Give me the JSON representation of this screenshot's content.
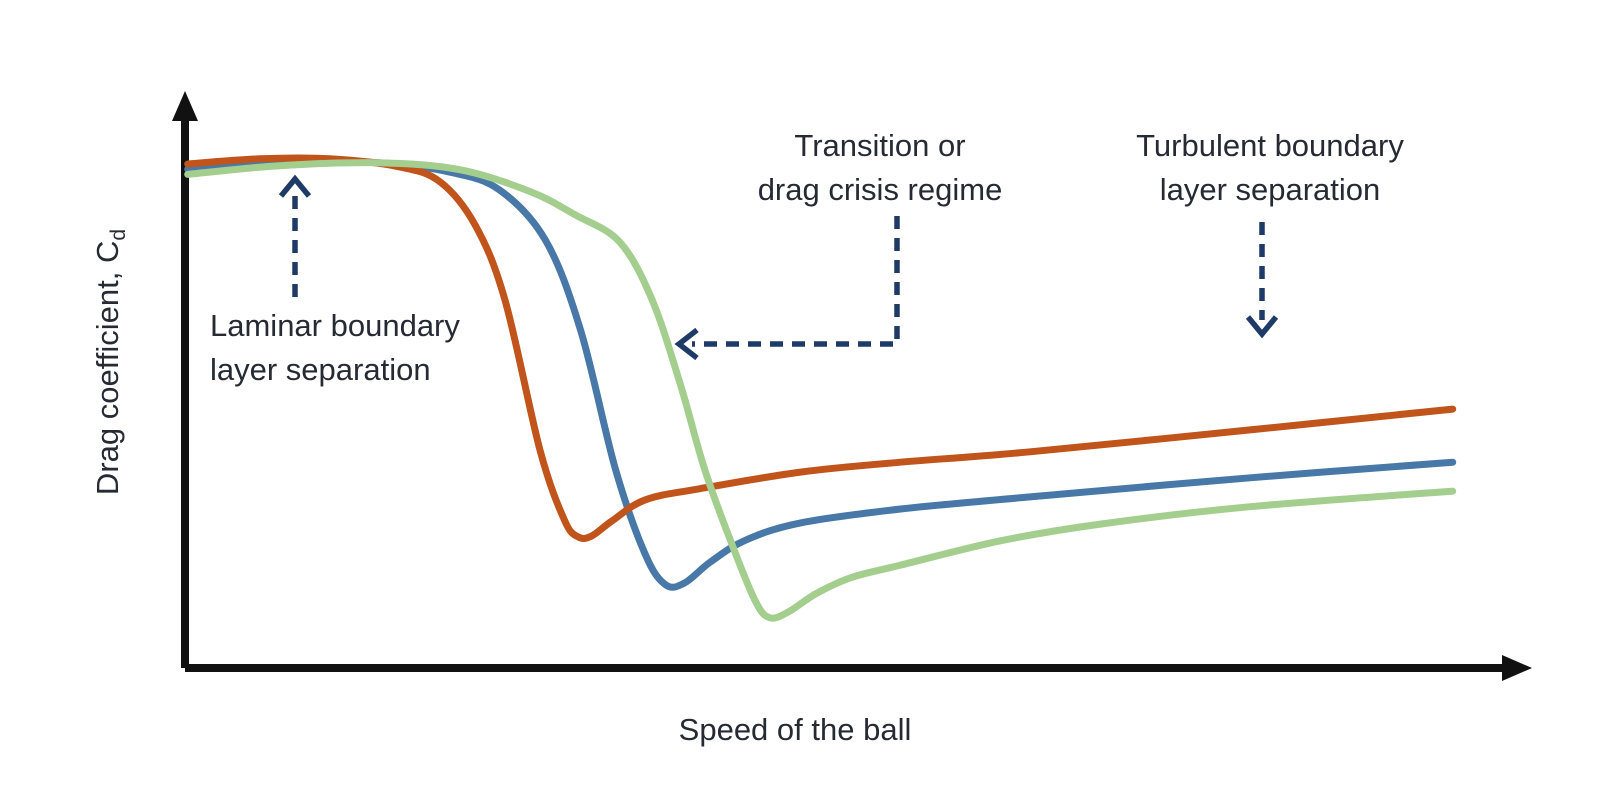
{
  "chart_data": {
    "type": "line",
    "title": "",
    "xlabel": "Speed of the ball",
    "ylabel": "Drag coefficient, Cd",
    "ylabel_main": "Drag coefficient, C",
    "ylabel_sub": "d",
    "x_axis": {
      "range": [
        0,
        10
      ],
      "ticks": [],
      "units": "arbitrary (qualitative axis, arrow at end)"
    },
    "y_axis": {
      "range": [
        0,
        1
      ],
      "ticks": [],
      "units": "arbitrary (qualitative axis, arrow at end)"
    },
    "grid": false,
    "legend": "none",
    "series": [
      {
        "name": "blue-curve",
        "color": "#4878A8",
        "points": [
          [
            0.02,
            0.863
          ],
          [
            0.7,
            0.874
          ],
          [
            1.44,
            0.874
          ],
          [
            1.96,
            0.858
          ],
          [
            2.33,
            0.827
          ],
          [
            2.67,
            0.74
          ],
          [
            2.93,
            0.585
          ],
          [
            3.19,
            0.343
          ],
          [
            3.41,
            0.196
          ],
          [
            3.56,
            0.144
          ],
          [
            3.7,
            0.147
          ],
          [
            3.89,
            0.183
          ],
          [
            4.15,
            0.221
          ],
          [
            4.56,
            0.251
          ],
          [
            5.3,
            0.275
          ],
          [
            6.26,
            0.296
          ],
          [
            7.89,
            0.329
          ],
          [
            9.39,
            0.356
          ]
        ]
      },
      {
        "name": "orange-curve",
        "color": "#C0541B",
        "points": [
          [
            0.02,
            0.872
          ],
          [
            0.56,
            0.881
          ],
          [
            1.07,
            0.881
          ],
          [
            1.59,
            0.867
          ],
          [
            1.89,
            0.841
          ],
          [
            2.15,
            0.766
          ],
          [
            2.37,
            0.637
          ],
          [
            2.63,
            0.377
          ],
          [
            2.81,
            0.256
          ],
          [
            2.91,
            0.227
          ],
          [
            3.01,
            0.228
          ],
          [
            3.16,
            0.254
          ],
          [
            3.41,
            0.291
          ],
          [
            3.81,
            0.31
          ],
          [
            4.56,
            0.339
          ],
          [
            5.3,
            0.356
          ],
          [
            6.26,
            0.374
          ],
          [
            7.89,
            0.412
          ],
          [
            9.39,
            0.448
          ]
        ]
      },
      {
        "name": "green-curve",
        "color": "#A3CE8E",
        "points": [
          [
            0.02,
            0.854
          ],
          [
            0.7,
            0.869
          ],
          [
            1.44,
            0.874
          ],
          [
            2.04,
            0.862
          ],
          [
            2.56,
            0.824
          ],
          [
            2.89,
            0.784
          ],
          [
            3.22,
            0.737
          ],
          [
            3.46,
            0.637
          ],
          [
            3.67,
            0.49
          ],
          [
            3.85,
            0.343
          ],
          [
            4.04,
            0.221
          ],
          [
            4.22,
            0.118
          ],
          [
            4.33,
            0.087
          ],
          [
            4.47,
            0.097
          ],
          [
            4.67,
            0.128
          ],
          [
            4.93,
            0.156
          ],
          [
            5.3,
            0.178
          ],
          [
            6.04,
            0.22
          ],
          [
            6.78,
            0.249
          ],
          [
            7.89,
            0.279
          ],
          [
            9.39,
            0.306
          ]
        ]
      }
    ],
    "annotations": [
      {
        "id": "laminar",
        "lines": [
          "Laminar boundary",
          "layer separation"
        ],
        "arrow": "navy dashed arrow pointing up at the flat high-drag plateau"
      },
      {
        "id": "transition",
        "lines": [
          "Transition or",
          "drag crisis regime"
        ],
        "arrow": "navy dashed elbow arrow pointing left at the steep drop of the green curve"
      },
      {
        "id": "turbulent",
        "lines": [
          "Turbulent boundary",
          "layer separation"
        ],
        "arrow": "navy dashed arrow pointing down toward the slowly rising curves"
      }
    ]
  },
  "colors": {
    "axis": "#111111",
    "annotation_arrow": "#1E3A66",
    "text": "#262A33",
    "series_orange": "#C0541B",
    "series_blue": "#4878A8",
    "series_green": "#A3CE8E"
  }
}
